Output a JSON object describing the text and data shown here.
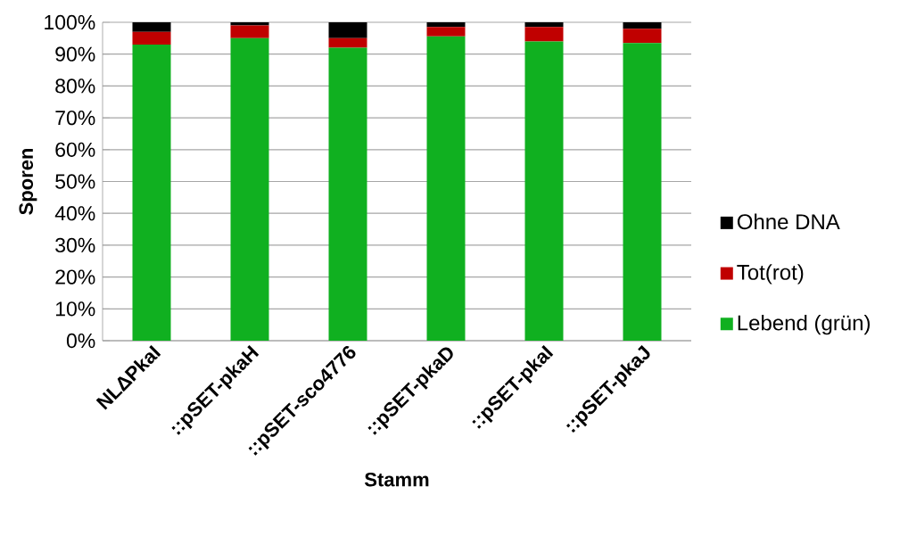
{
  "chart_data": {
    "type": "bar",
    "stacked": true,
    "xlabel": "Stamm",
    "ylabel": "Sporen",
    "categories": [
      "NLΔPkaI",
      "::pSET-pkaH",
      "::pSET-sco4776",
      "::pSET-pkaD",
      "::pSET-pkaI",
      "::pSET-pkaJ"
    ],
    "series": [
      {
        "name": "Lebend (grün)",
        "color": "#10b020",
        "values": [
          93,
          95,
          92,
          95.6,
          94,
          93.5
        ]
      },
      {
        "name": "Tot(rot)",
        "color": "#c00000",
        "values": [
          4,
          4,
          3,
          2.9,
          4.5,
          4.5
        ]
      },
      {
        "name": "Ohne DNA",
        "color": "#000000",
        "values": [
          3,
          1,
          5,
          1.5,
          1.5,
          2
        ]
      }
    ],
    "ylim": [
      0,
      100
    ],
    "yticks": [
      {
        "value": 0,
        "label": "0%"
      },
      {
        "value": 10,
        "label": "10%"
      },
      {
        "value": 20,
        "label": "20%"
      },
      {
        "value": 30,
        "label": "30%"
      },
      {
        "value": 40,
        "label": "40%"
      },
      {
        "value": 50,
        "label": "50%"
      },
      {
        "value": 60,
        "label": "60%"
      },
      {
        "value": 70,
        "label": "70%"
      },
      {
        "value": 80,
        "label": "80%"
      },
      {
        "value": 90,
        "label": "90%"
      },
      {
        "value": 100,
        "label": "100%"
      }
    ],
    "grid": "y",
    "legend": "right"
  }
}
